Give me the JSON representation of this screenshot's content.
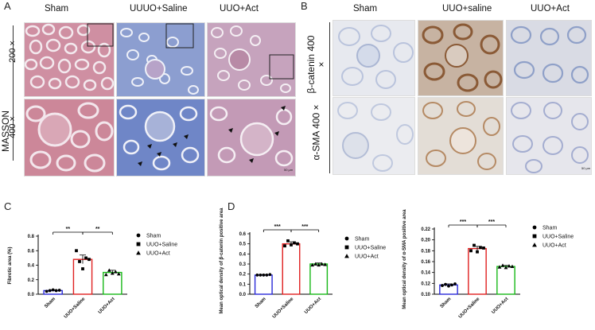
{
  "panel_labels": {
    "a": "A",
    "b": "B",
    "c": "C",
    "d": "D"
  },
  "panel_a": {
    "columns": [
      "Sham",
      "UUUO+Saline",
      "UUO+Act"
    ],
    "side_label": "MASSON",
    "rows": [
      "200 ×",
      "400 ×"
    ],
    "scale_bar": "50 μm"
  },
  "panel_b": {
    "columns": [
      "Sham",
      "UUO+saline",
      "UUO+Act"
    ],
    "rows": [
      "β-catenin 400 ×",
      "α-SMA 400 ×"
    ],
    "scale_bar": "50 μm"
  },
  "colors": {
    "sham": "#2a2ad8",
    "saline": "#e02020",
    "act": "#18b818",
    "masson_pink": "#c98a9e",
    "masson_blue": "#6d86c2",
    "ihc_bg": "#e6e8ee",
    "ihc_nuclei": "#7f95c6",
    "ihc_brown": "#9c6a3e"
  },
  "chart_data": [
    {
      "type": "bar",
      "categories": [
        "Sham",
        "UUO+Saline",
        "UUO+Act"
      ],
      "values": [
        0.05,
        0.48,
        0.3
      ],
      "errors": [
        0.01,
        0.06,
        0.03
      ],
      "points": [
        [
          0.04,
          0.05,
          0.06,
          0.05,
          0.055
        ],
        [
          0.6,
          0.45,
          0.35,
          0.5,
          0.48
        ],
        [
          0.27,
          0.33,
          0.29,
          0.31,
          0.28
        ]
      ],
      "ylabel": "Fibrotic area (%)",
      "ylim": [
        0.0,
        0.8
      ],
      "yticks": [
        "0.0",
        "0.2",
        "0.4",
        "0.6",
        "0.8"
      ],
      "ytick_values": [
        0.0,
        0.2,
        0.4,
        0.6,
        0.8
      ],
      "significance": [
        {
          "from": 0,
          "to": 1,
          "label": "**"
        },
        {
          "from": 1,
          "to": 2,
          "label": "**"
        }
      ],
      "legend": [
        "Sham",
        "UUO+Saline",
        "UUO+Act"
      ],
      "legend_markers": [
        "circle",
        "square",
        "triangle"
      ],
      "legend_position": "right"
    },
    {
      "type": "bar",
      "categories": [
        "Sham",
        "UUO+Saline",
        "UUO+Act"
      ],
      "values": [
        0.19,
        0.5,
        0.3
      ],
      "errors": [
        0.005,
        0.02,
        0.01
      ],
      "points": [
        [
          0.19,
          0.19,
          0.19,
          0.19,
          0.195
        ],
        [
          0.48,
          0.53,
          0.49,
          0.51,
          0.5
        ],
        [
          0.29,
          0.3,
          0.29,
          0.3,
          0.295
        ]
      ],
      "ylabel": "Mean optical density of β-catenin positive area",
      "ylim": [
        0.0,
        0.6
      ],
      "yticks": [
        "0.0",
        "0.1",
        "0.2",
        "0.3",
        "0.4",
        "0.5",
        "0.6"
      ],
      "ytick_values": [
        0.0,
        0.1,
        0.2,
        0.3,
        0.4,
        0.5,
        0.6
      ],
      "significance": [
        {
          "from": 0,
          "to": 1,
          "label": "***"
        },
        {
          "from": 1,
          "to": 2,
          "label": "***"
        }
      ],
      "legend": [
        "Sham",
        "UUO+Saline",
        "UUO+Act"
      ],
      "legend_markers": [
        "circle",
        "square",
        "triangle"
      ],
      "legend_position": "right"
    },
    {
      "type": "bar",
      "categories": [
        "Sham",
        "UUO+Saline",
        "UUO+Act"
      ],
      "values": [
        0.117,
        0.184,
        0.151
      ],
      "errors": [
        0.002,
        0.004,
        0.002
      ],
      "points": [
        [
          0.116,
          0.118,
          0.115,
          0.117,
          0.119
        ],
        [
          0.18,
          0.19,
          0.178,
          0.186,
          0.185
        ],
        [
          0.15,
          0.153,
          0.149,
          0.152,
          0.151
        ]
      ],
      "ylabel": "Mean optical density of α-SMA positive area",
      "ylim": [
        0.1,
        0.22
      ],
      "yticks": [
        "0.10",
        "0.12",
        "0.14",
        "0.16",
        "0.18",
        "0.20",
        "0.22"
      ],
      "ytick_values": [
        0.1,
        0.12,
        0.14,
        0.16,
        0.18,
        0.2,
        0.22
      ],
      "significance": [
        {
          "from": 0,
          "to": 1,
          "label": "***"
        },
        {
          "from": 1,
          "to": 2,
          "label": "***"
        }
      ],
      "legend": [
        "Sham",
        "UUO+Saline",
        "UUO+Act"
      ],
      "legend_markers": [
        "circle",
        "square",
        "triangle"
      ],
      "legend_position": "right"
    }
  ]
}
